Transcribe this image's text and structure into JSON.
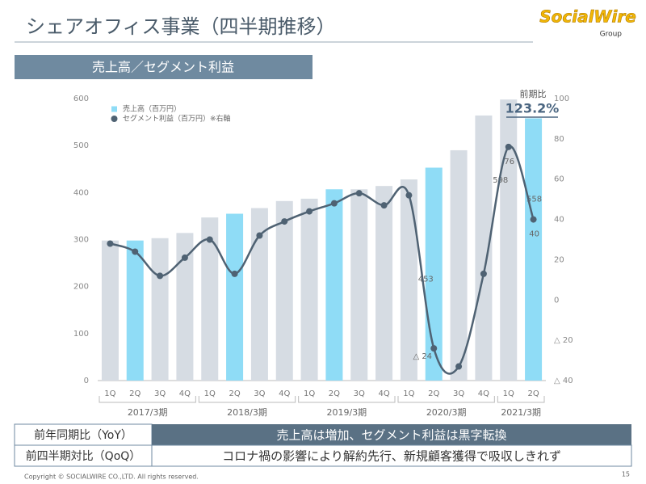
{
  "header": {
    "title": "シェアオフィス事業（四半期推移）"
  },
  "logo": {
    "text": "SocialWire",
    "sub": "Group"
  },
  "section_title": "売上高／セグメント利益",
  "chart_data": {
    "type": "combo",
    "categories": [
      "1Q",
      "2Q",
      "3Q",
      "4Q",
      "1Q",
      "2Q",
      "3Q",
      "4Q",
      "1Q",
      "2Q",
      "3Q",
      "4Q",
      "1Q",
      "2Q",
      "3Q",
      "4Q",
      "1Q",
      "2Q"
    ],
    "groups": [
      {
        "label": "2017/3期",
        "size": 4
      },
      {
        "label": "2018/3期",
        "size": 4
      },
      {
        "label": "2019/3期",
        "size": 4
      },
      {
        "label": "2020/3期",
        "size": 4
      },
      {
        "label": "2021/3期",
        "size": 2
      }
    ],
    "series": [
      {
        "name": "売上高（百万円）",
        "type": "bar",
        "color": "#8fdcf6",
        "colors": [
          "#d6dce3",
          "#8fdcf6",
          "#d6dce3",
          "#d6dce3",
          "#d6dce3",
          "#8fdcf6",
          "#d6dce3",
          "#d6dce3",
          "#d6dce3",
          "#8fdcf6",
          "#d6dce3",
          "#d6dce3",
          "#d6dce3",
          "#8fdcf6",
          "#d6dce3",
          "#d6dce3",
          "#d6dce3",
          "#8fdcf6"
        ],
        "values": [
          298,
          298,
          303,
          314,
          347,
          355,
          367,
          382,
          387,
          407,
          407,
          414,
          428,
          453,
          490,
          564,
          598,
          558
        ],
        "value_labels": [
          null,
          null,
          null,
          null,
          null,
          null,
          null,
          null,
          null,
          null,
          null,
          null,
          null,
          "453",
          null,
          null,
          "598",
          "558"
        ]
      },
      {
        "name": "セグメント利益（百万円）※右軸",
        "type": "line",
        "axis": "y2",
        "color": "#4f6273",
        "values": [
          28,
          24,
          12,
          21,
          30,
          13,
          32,
          39,
          44,
          48,
          53,
          47,
          52,
          -24,
          -33,
          13,
          76,
          40
        ],
        "value_labels": [
          null,
          null,
          null,
          null,
          null,
          null,
          null,
          null,
          null,
          null,
          null,
          null,
          null,
          "△ 24",
          null,
          null,
          "76",
          "40"
        ]
      }
    ],
    "ylim": [
      0,
      600
    ],
    "yticks": [
      0,
      100,
      200,
      300,
      400,
      500,
      600
    ],
    "y2lim": [
      -40,
      100
    ],
    "y2ticks": [
      {
        "value": -40,
        "label": "△ 40"
      },
      {
        "value": -20,
        "label": "△ 20"
      },
      0,
      20,
      40,
      60,
      80,
      100
    ],
    "annotation": {
      "label": "前期比",
      "value": "123.2%"
    },
    "legend": "upper left"
  },
  "table": {
    "rows": [
      [
        "前年同期比（YoY）",
        "売上高は増加、セグメント利益は黒字転換"
      ],
      [
        "前四半期対比（QoQ）",
        "コロナ禍の影響により解約先行、新規顧客獲得で吸収しきれず"
      ]
    ]
  },
  "footer": {
    "copyright": "Copyright © SOCIALWIRE CO.,LTD. All rights reserved.",
    "page": "15"
  }
}
